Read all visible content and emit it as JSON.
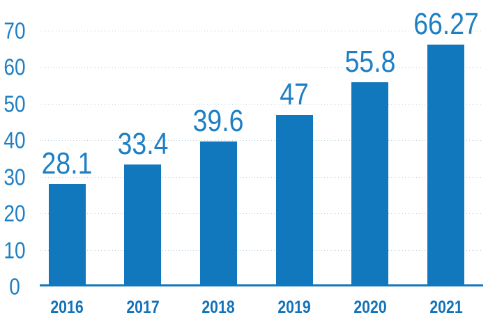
{
  "chart_data": {
    "type": "bar",
    "title": "",
    "xlabel": "",
    "ylabel": "",
    "categories": [
      "2016",
      "2017",
      "2018",
      "2019",
      "2020",
      "2021"
    ],
    "values": [
      28.1,
      33.4,
      39.6,
      47,
      55.8,
      66.27
    ],
    "value_labels": [
      "28.1",
      "33.4",
      "39.6",
      "47",
      "55.8",
      "66.27"
    ],
    "ylim": [
      0,
      70
    ],
    "yticks": [
      0,
      10,
      20,
      30,
      40,
      50,
      60,
      70
    ],
    "grid": "horizontal-dotted",
    "legend_position": "none",
    "colors": {
      "bar": "#1278bd",
      "value_label": "#1e7fc4",
      "tick_label": "#1e7fc4",
      "category_label": "#1272b8",
      "axis_line": "#1278bd",
      "gridline": "#b4cee0",
      "background": "#ffffff"
    }
  }
}
